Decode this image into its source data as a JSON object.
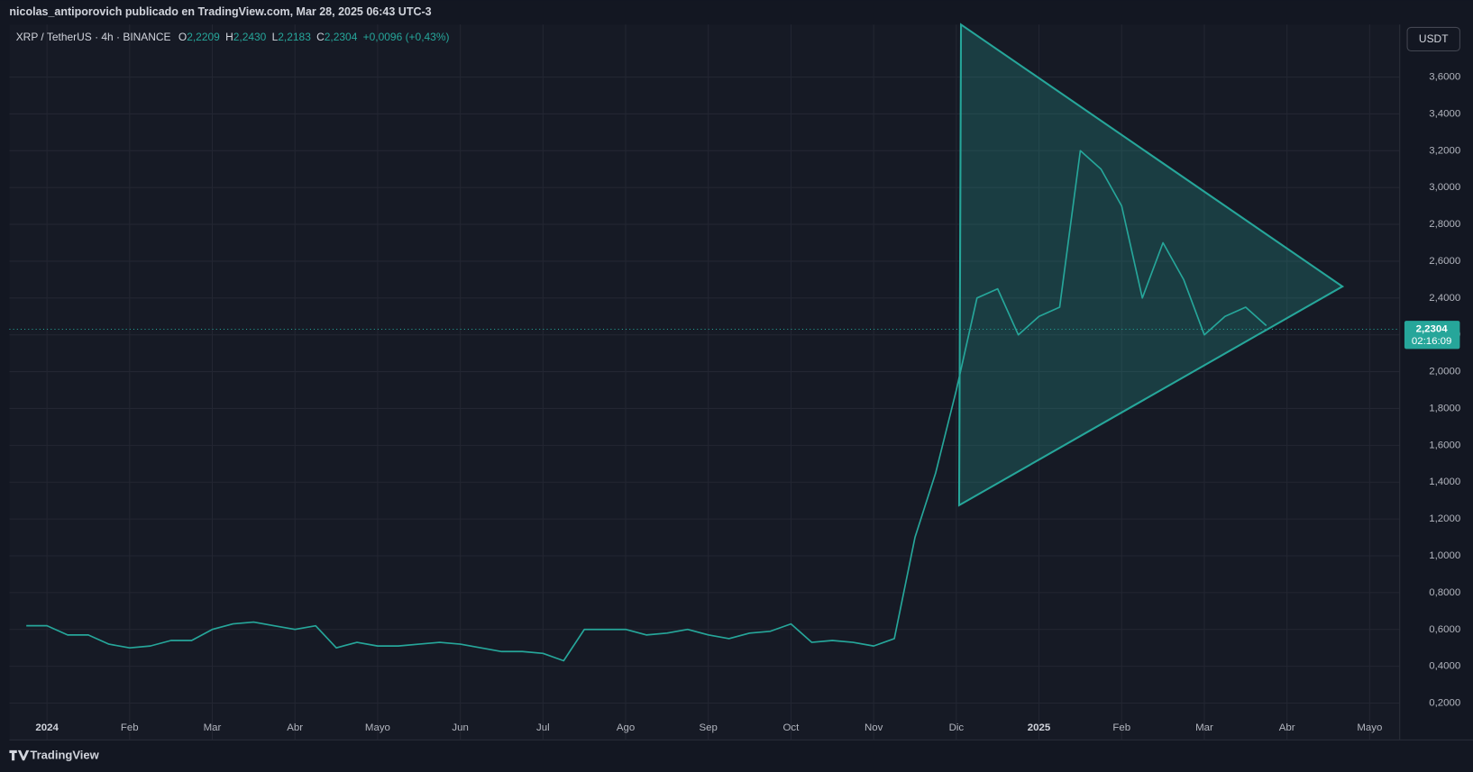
{
  "chart_data": {
    "type": "line",
    "byline": "nicolas_antiporovich publicado en TradingView.com, Mar 28, 2025 06:43 UTC-3",
    "title": "XRP / TetherUS · 4h · BINANCE",
    "ohlc": [
      {
        "label": "O",
        "value": "2,2209"
      },
      {
        "label": "H",
        "value": "2,2430"
      },
      {
        "label": "L",
        "value": "2,2183"
      },
      {
        "label": "C",
        "value": "2,2304"
      }
    ],
    "change": "+0,0096 (+0,43%)",
    "currency": "USDT",
    "last_price": {
      "value": 2.2304,
      "label": "2,2304"
    },
    "countdown": "02:16:09",
    "brand": "TradingView",
    "categories": [
      null,
      "2024",
      null,
      null,
      null,
      "Feb",
      null,
      null,
      null,
      "Mar",
      null,
      null,
      null,
      "Abr",
      null,
      null,
      null,
      "Mayo",
      null,
      null,
      null,
      "Jun",
      null,
      null,
      null,
      "Jul",
      null,
      null,
      null,
      "Ago",
      null,
      null,
      null,
      "Sep",
      null,
      null,
      null,
      "Oct",
      null,
      null,
      null,
      "Nov",
      null,
      null,
      null,
      "Dic",
      null,
      null,
      null,
      "2025",
      null,
      null,
      null,
      "Feb",
      null,
      null,
      null,
      "Mar",
      null,
      null,
      null,
      "Abr",
      null,
      null,
      null,
      "Mayo",
      null
    ],
    "series": [
      {
        "name": "XRPUSDT",
        "color": "#26a69a",
        "values": [
          0.62,
          0.62,
          0.57,
          0.57,
          0.52,
          0.5,
          0.51,
          0.54,
          0.54,
          0.6,
          0.63,
          0.64,
          0.62,
          0.6,
          0.62,
          0.5,
          0.53,
          0.51,
          0.51,
          0.52,
          0.53,
          0.52,
          0.5,
          0.48,
          0.48,
          0.47,
          0.43,
          0.6,
          0.6,
          0.6,
          0.57,
          0.58,
          0.6,
          0.57,
          0.55,
          0.58,
          0.59,
          0.63,
          0.53,
          0.54,
          0.53,
          0.51,
          0.55,
          1.1,
          1.45,
          1.9,
          2.4,
          2.45,
          2.2,
          2.3,
          2.35,
          3.2,
          3.1,
          2.9,
          2.4,
          2.7,
          2.5,
          2.2,
          2.3,
          2.35,
          2.25,
          null,
          null,
          null,
          null,
          null,
          null
        ]
      }
    ],
    "ylim": [
      0,
      3.885
    ],
    "yticks": [
      {
        "value": 0.2,
        "label": "0,2000"
      },
      {
        "value": 0.4,
        "label": "0,4000"
      },
      {
        "value": 0.6,
        "label": "0,6000"
      },
      {
        "value": 0.8,
        "label": "0,8000"
      },
      {
        "value": 1.0,
        "label": "1,0000"
      },
      {
        "value": 1.2,
        "label": "1,2000"
      },
      {
        "value": 1.4,
        "label": "1,4000"
      },
      {
        "value": 1.6,
        "label": "1,6000"
      },
      {
        "value": 1.8,
        "label": "1,8000"
      },
      {
        "value": 2.0,
        "label": "2,0000"
      },
      {
        "value": 2.2,
        "label": "2,2000"
      },
      {
        "value": 2.4,
        "label": "2,4000"
      },
      {
        "value": 2.6,
        "label": "2,6000"
      },
      {
        "value": 2.8,
        "label": "2,8000"
      },
      {
        "value": 3.0,
        "label": "3,0000"
      },
      {
        "value": 3.2,
        "label": "3,2000"
      },
      {
        "value": 3.4,
        "label": "3,4000"
      },
      {
        "value": 3.6,
        "label": "3,6000"
      }
    ],
    "grid": true
  }
}
